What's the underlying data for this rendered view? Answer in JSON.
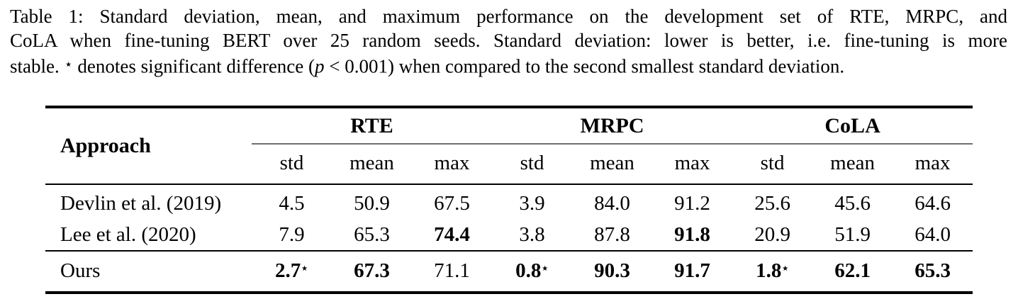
{
  "caption": {
    "line1": "Table 1: Standard deviation, mean, and maximum performance on the development set of RTE, MRPC, and",
    "line2": "CoLA when fine-tuning BERT over 25 random seeds. Standard deviation: lower is better, i.e. fine-tuning is more",
    "line3_parts": {
      "pre": "stable. ",
      "star": "⋆",
      "mid": " denotes significant difference (",
      "p_var": "p",
      "post": " < 0.001) when compared to the second smallest standard deviation."
    }
  },
  "table": {
    "approach_header": "Approach",
    "groups": [
      "RTE",
      "MRPC",
      "CoLA"
    ],
    "subheaders": [
      "std",
      "mean",
      "max",
      "std",
      "mean",
      "max",
      "std",
      "mean",
      "max"
    ],
    "star_symbol": "⋆",
    "rows": [
      {
        "approach": "Devlin et al. (2019)",
        "separated": false,
        "cells": [
          {
            "v": "4.5",
            "b": false,
            "s": false
          },
          {
            "v": "50.9",
            "b": false,
            "s": false
          },
          {
            "v": "67.5",
            "b": false,
            "s": false
          },
          {
            "v": "3.9",
            "b": false,
            "s": false
          },
          {
            "v": "84.0",
            "b": false,
            "s": false
          },
          {
            "v": "91.2",
            "b": false,
            "s": false
          },
          {
            "v": "25.6",
            "b": false,
            "s": false
          },
          {
            "v": "45.6",
            "b": false,
            "s": false
          },
          {
            "v": "64.6",
            "b": false,
            "s": false
          }
        ]
      },
      {
        "approach": "Lee et al. (2020)",
        "separated": false,
        "cells": [
          {
            "v": "7.9",
            "b": false,
            "s": false
          },
          {
            "v": "65.3",
            "b": false,
            "s": false
          },
          {
            "v": "74.4",
            "b": true,
            "s": false
          },
          {
            "v": "3.8",
            "b": false,
            "s": false
          },
          {
            "v": "87.8",
            "b": false,
            "s": false
          },
          {
            "v": "91.8",
            "b": true,
            "s": false
          },
          {
            "v": "20.9",
            "b": false,
            "s": false
          },
          {
            "v": "51.9",
            "b": false,
            "s": false
          },
          {
            "v": "64.0",
            "b": false,
            "s": false
          }
        ]
      },
      {
        "approach": "Ours",
        "separated": true,
        "cells": [
          {
            "v": "2.7",
            "b": true,
            "s": true
          },
          {
            "v": "67.3",
            "b": true,
            "s": false
          },
          {
            "v": "71.1",
            "b": false,
            "s": false
          },
          {
            "v": "0.8",
            "b": true,
            "s": true
          },
          {
            "v": "90.3",
            "b": true,
            "s": false
          },
          {
            "v": "91.7",
            "b": true,
            "s": false
          },
          {
            "v": "1.8",
            "b": true,
            "s": true
          },
          {
            "v": "62.1",
            "b": true,
            "s": false
          },
          {
            "v": "65.3",
            "b": true,
            "s": false
          }
        ]
      }
    ],
    "colors": {
      "background": "#ffffff",
      "text": "#000000",
      "rule_heavy": "#000000",
      "rule_mid": "#000000",
      "rule_cmid": "#6e6e6e"
    }
  }
}
